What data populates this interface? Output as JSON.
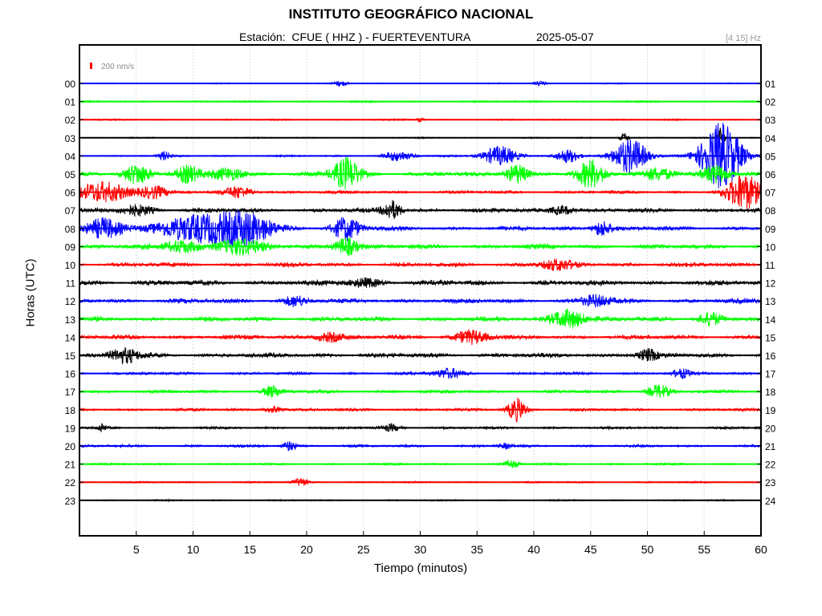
{
  "header": {
    "title": "INSTITUTO GEOGRÁFICO NACIONAL",
    "station": "Estación:  CFUE ( HHZ ) - FUERTEVENTURA",
    "date": "2025-05-07",
    "band": "[4 15] Hz"
  },
  "chart_data": {
    "type": "line",
    "title": "INSTITUTO GEOGRÁFICO NACIONAL",
    "xlabel": "Tiempo (minutos)",
    "ylabel": "Horas (UTC)",
    "xlim": [
      0,
      60
    ],
    "x_ticks": [
      "5",
      "10",
      "15",
      "20",
      "25",
      "30",
      "35",
      "40",
      "45",
      "50",
      "55",
      "60"
    ],
    "x_tick_values": [
      5,
      10,
      15,
      20,
      25,
      30,
      35,
      40,
      45,
      50,
      55,
      60
    ],
    "left_hour_labels": [
      "00",
      "01",
      "02",
      "03",
      "04",
      "05",
      "06",
      "07",
      "08",
      "09",
      "10",
      "11",
      "12",
      "13",
      "14",
      "15",
      "16",
      "17",
      "18",
      "19",
      "20",
      "21",
      "22",
      "23"
    ],
    "right_hour_labels": [
      "01",
      "02",
      "03",
      "04",
      "05",
      "06",
      "07",
      "08",
      "09",
      "10",
      "11",
      "12",
      "13",
      "14",
      "15",
      "16",
      "17",
      "18",
      "19",
      "20",
      "21",
      "22",
      "23",
      "24"
    ],
    "scale_label": "200 nm/s",
    "grid": "vertical, dotted",
    "colors": {
      "blue": "#0000ff",
      "green": "#00ff00",
      "red": "#ff0000",
      "black": "#000000",
      "grid": "#dddddd"
    },
    "trace_colors": [
      "blue",
      "green",
      "red",
      "black",
      "blue",
      "green",
      "red",
      "black",
      "blue",
      "green",
      "red",
      "black",
      "blue",
      "green",
      "red",
      "black",
      "blue",
      "green",
      "red",
      "black",
      "blue",
      "green",
      "red",
      "black"
    ],
    "trace_noise": [
      0.8,
      1.2,
      1.0,
      0.8,
      1.3,
      3.0,
      2.2,
      3.0,
      3.0,
      3.2,
      3.0,
      3.5,
      3.2,
      3.2,
      3.0,
      3.2,
      2.0,
      2.2,
      2.0,
      1.8,
      1.8,
      1.4,
      1.2,
      1.0
    ],
    "events": [
      {
        "hour": 0,
        "minute": 23,
        "amp": 3,
        "dur": 0.6
      },
      {
        "hour": 0,
        "minute": 40.5,
        "amp": 3,
        "dur": 0.6
      },
      {
        "hour": 2,
        "minute": 30,
        "amp": 3,
        "dur": 0.3
      },
      {
        "hour": 3,
        "minute": 48,
        "amp": 6,
        "dur": 0.4
      },
      {
        "hour": 3,
        "minute": 56.5,
        "amp": 14,
        "dur": 0.3
      },
      {
        "hour": 4,
        "minute": 7.5,
        "amp": 5,
        "dur": 0.5
      },
      {
        "hour": 4,
        "minute": 28,
        "amp": 6,
        "dur": 1.2
      },
      {
        "hour": 4,
        "minute": 37,
        "amp": 12,
        "dur": 1.5
      },
      {
        "hour": 4,
        "minute": 43,
        "amp": 8,
        "dur": 1.0
      },
      {
        "hour": 4,
        "minute": 48.5,
        "amp": 22,
        "dur": 1.5
      },
      {
        "hour": 4,
        "minute": 56.5,
        "amp": 42,
        "dur": 1.8
      },
      {
        "hour": 5,
        "minute": 5,
        "amp": 12,
        "dur": 1.2
      },
      {
        "hour": 5,
        "minute": 9.5,
        "amp": 10,
        "dur": 1.0
      },
      {
        "hour": 5,
        "minute": 13,
        "amp": 8,
        "dur": 1.5
      },
      {
        "hour": 5,
        "minute": 23.5,
        "amp": 20,
        "dur": 1.2
      },
      {
        "hour": 5,
        "minute": 38.5,
        "amp": 12,
        "dur": 1.0
      },
      {
        "hour": 5,
        "minute": 45,
        "amp": 16,
        "dur": 1.2
      },
      {
        "hour": 5,
        "minute": 51,
        "amp": 8,
        "dur": 1.5
      },
      {
        "hour": 5,
        "minute": 56,
        "amp": 10,
        "dur": 1.2
      },
      {
        "hour": 6,
        "minute": 2,
        "amp": 12,
        "dur": 2.5
      },
      {
        "hour": 6,
        "minute": 6.5,
        "amp": 8,
        "dur": 1.2
      },
      {
        "hour": 6,
        "minute": 14,
        "amp": 7,
        "dur": 1.2
      },
      {
        "hour": 6,
        "minute": 58.5,
        "amp": 22,
        "dur": 1.5
      },
      {
        "hour": 7,
        "minute": 5,
        "amp": 6,
        "dur": 1.5
      },
      {
        "hour": 7,
        "minute": 27.5,
        "amp": 12,
        "dur": 0.8
      },
      {
        "hour": 7,
        "minute": 42.5,
        "amp": 6,
        "dur": 1.0
      },
      {
        "hour": 8,
        "minute": 2,
        "amp": 12,
        "dur": 1.5
      },
      {
        "hour": 8,
        "minute": 11,
        "amp": 18,
        "dur": 4.0
      },
      {
        "hour": 8,
        "minute": 15,
        "amp": 14,
        "dur": 2.0
      },
      {
        "hour": 8,
        "minute": 23.5,
        "amp": 14,
        "dur": 1.2
      },
      {
        "hour": 8,
        "minute": 46,
        "amp": 10,
        "dur": 0.8
      },
      {
        "hour": 9,
        "minute": 9,
        "amp": 8,
        "dur": 1.5
      },
      {
        "hour": 9,
        "minute": 14,
        "amp": 10,
        "dur": 2.0
      },
      {
        "hour": 9,
        "minute": 23.5,
        "amp": 12,
        "dur": 1.0
      },
      {
        "hour": 10,
        "minute": 42,
        "amp": 6,
        "dur": 1.5
      },
      {
        "hour": 11,
        "minute": 25,
        "amp": 5,
        "dur": 1.5
      },
      {
        "hour": 12,
        "minute": 19,
        "amp": 6,
        "dur": 1.0
      },
      {
        "hour": 12,
        "minute": 45.5,
        "amp": 7,
        "dur": 1.2
      },
      {
        "hour": 13,
        "minute": 43,
        "amp": 12,
        "dur": 1.5
      },
      {
        "hour": 13,
        "minute": 55.5,
        "amp": 8,
        "dur": 1.0
      },
      {
        "hour": 14,
        "minute": 22,
        "amp": 6,
        "dur": 1.2
      },
      {
        "hour": 14,
        "minute": 34.5,
        "amp": 8,
        "dur": 1.5
      },
      {
        "hour": 15,
        "minute": 4,
        "amp": 9,
        "dur": 1.2
      },
      {
        "hour": 15,
        "minute": 50,
        "amp": 7,
        "dur": 0.8
      },
      {
        "hour": 16,
        "minute": 32.5,
        "amp": 6,
        "dur": 1.2
      },
      {
        "hour": 16,
        "minute": 53,
        "amp": 5,
        "dur": 0.8
      },
      {
        "hour": 17,
        "minute": 17,
        "amp": 7,
        "dur": 0.8
      },
      {
        "hour": 17,
        "minute": 51,
        "amp": 8,
        "dur": 1.0
      },
      {
        "hour": 18,
        "minute": 38.5,
        "amp": 14,
        "dur": 0.8
      },
      {
        "hour": 18,
        "minute": 17,
        "amp": 4,
        "dur": 0.8
      },
      {
        "hour": 19,
        "minute": 2,
        "amp": 6,
        "dur": 0.3
      },
      {
        "hour": 19,
        "minute": 27.5,
        "amp": 4,
        "dur": 0.8
      },
      {
        "hour": 20,
        "minute": 18.5,
        "amp": 6,
        "dur": 0.6
      },
      {
        "hour": 20,
        "minute": 37.5,
        "amp": 3,
        "dur": 0.6
      },
      {
        "hour": 21,
        "minute": 38,
        "amp": 5,
        "dur": 0.6
      },
      {
        "hour": 22,
        "minute": 19.5,
        "amp": 5,
        "dur": 0.6
      }
    ]
  }
}
